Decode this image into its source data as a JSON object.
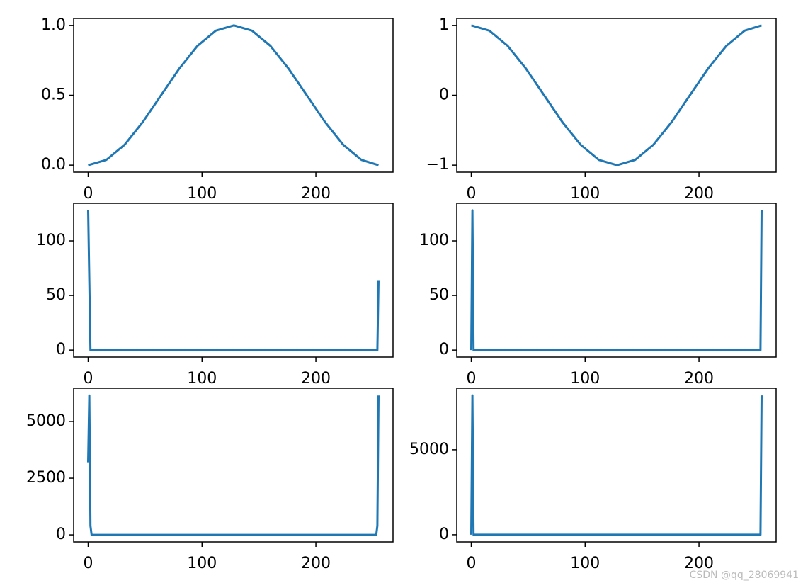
{
  "chart_data": [
    {
      "type": "line",
      "color": "#1f77b4",
      "x": [
        0,
        16,
        32,
        48,
        64,
        80,
        96,
        112,
        128,
        144,
        160,
        176,
        192,
        208,
        224,
        240,
        255
      ],
      "values": [
        0,
        0.038,
        0.146,
        0.309,
        0.5,
        0.691,
        0.854,
        0.962,
        1,
        0.962,
        0.854,
        0.691,
        0.5,
        0.309,
        0.146,
        0.038,
        0
      ],
      "xlim": [
        -12.75,
        267.75
      ],
      "xticks": [
        0,
        100,
        200
      ],
      "ylim": [
        -0.05,
        1.05
      ],
      "yticks": [
        {
          "value": 0,
          "label": "0.0"
        },
        {
          "value": 0.5,
          "label": "0.5"
        },
        {
          "value": 1,
          "label": "1.0"
        }
      ]
    },
    {
      "type": "line",
      "color": "#1f77b4",
      "x": [
        0,
        16,
        32,
        48,
        64,
        80,
        96,
        112,
        128,
        144,
        160,
        176,
        192,
        208,
        224,
        240,
        255
      ],
      "values": [
        1,
        0.924,
        0.707,
        0.383,
        0,
        -0.383,
        -0.707,
        -0.924,
        -1,
        -0.924,
        -0.707,
        -0.383,
        0,
        0.383,
        0.707,
        0.924,
        1
      ],
      "xlim": [
        -12.75,
        267.75
      ],
      "xticks": [
        0,
        100,
        200
      ],
      "ylim": [
        -1.1,
        1.1
      ],
      "yticks": [
        {
          "value": -1,
          "label": "−1"
        },
        0,
        1
      ]
    },
    {
      "type": "line",
      "color": "#1f77b4",
      "x": [
        0,
        1,
        2,
        254,
        255
      ],
      "values": [
        128,
        64,
        0,
        0,
        64
      ],
      "xlim": [
        -12.75,
        267.75
      ],
      "xticks": [
        0,
        100,
        200
      ],
      "ylim": [
        -6.4,
        134.4
      ],
      "yticks": [
        0,
        50,
        100
      ]
    },
    {
      "type": "line",
      "color": "#1f77b4",
      "x": [
        0,
        1,
        2,
        254,
        255
      ],
      "values": [
        0,
        128,
        0,
        0,
        128
      ],
      "xlim": [
        -12.75,
        267.75
      ],
      "xticks": [
        0,
        100,
        200
      ],
      "ylim": [
        -6.4,
        134.4
      ],
      "yticks": [
        0,
        50,
        100
      ]
    },
    {
      "type": "line",
      "color": "#1f77b4",
      "x": [
        0,
        1,
        2,
        3,
        253,
        254,
        255
      ],
      "values": [
        3200,
        6150,
        400,
        0,
        0,
        400,
        6150
      ],
      "xlim": [
        -12.75,
        267.75
      ],
      "xticks": [
        0,
        100,
        200
      ],
      "ylim": [
        -310,
        6470
      ],
      "yticks": [
        0,
        2500,
        5000
      ]
    },
    {
      "type": "line",
      "color": "#1f77b4",
      "x": [
        0,
        1,
        2,
        254,
        255
      ],
      "values": [
        0,
        8200,
        0,
        0,
        8200
      ],
      "xlim": [
        -12.75,
        267.75
      ],
      "xticks": [
        0,
        100,
        200
      ],
      "ylim": [
        -420,
        8620
      ],
      "yticks": [
        0,
        5000
      ]
    }
  ],
  "watermark": "CSDN @qq_28069941"
}
